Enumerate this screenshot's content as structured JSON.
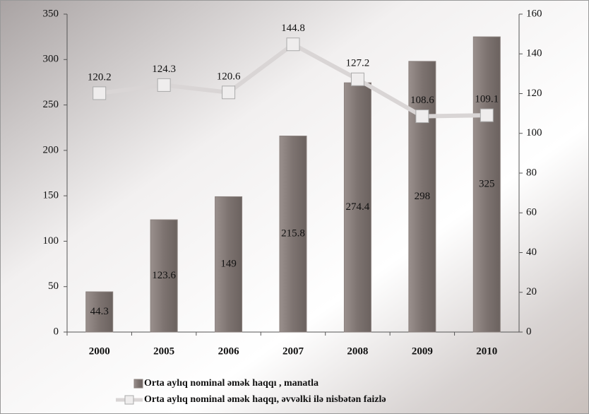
{
  "chart_data": {
    "type": "bar",
    "categories": [
      "2000",
      "2005",
      "2006",
      "2007",
      "2008",
      "2009",
      "2010"
    ],
    "series": [
      {
        "name": "Orta aylıq nominal əmək haqqı , manatla",
        "color": "#8a807d",
        "type": "bar",
        "values": [
          44.3,
          123.6,
          149,
          215.8,
          274.4,
          298,
          325
        ]
      },
      {
        "name": "Orta aylıq nominal əmək haqqı, əvvəlki ilə nisbətən faizlə",
        "color": "#d9d5d5",
        "type": "line",
        "axis": "y2",
        "values": [
          120.2,
          124.3,
          120.6,
          144.8,
          127.2,
          108.6,
          109.1
        ]
      }
    ],
    "ylim": [
      0,
      350
    ],
    "yticks": [
      0,
      50,
      100,
      150,
      200,
      250,
      300,
      350
    ],
    "y2lim": [
      0,
      160
    ],
    "y2ticks": [
      0,
      20,
      40,
      60,
      80,
      100,
      120,
      140,
      160
    ],
    "legend": "bottom"
  }
}
